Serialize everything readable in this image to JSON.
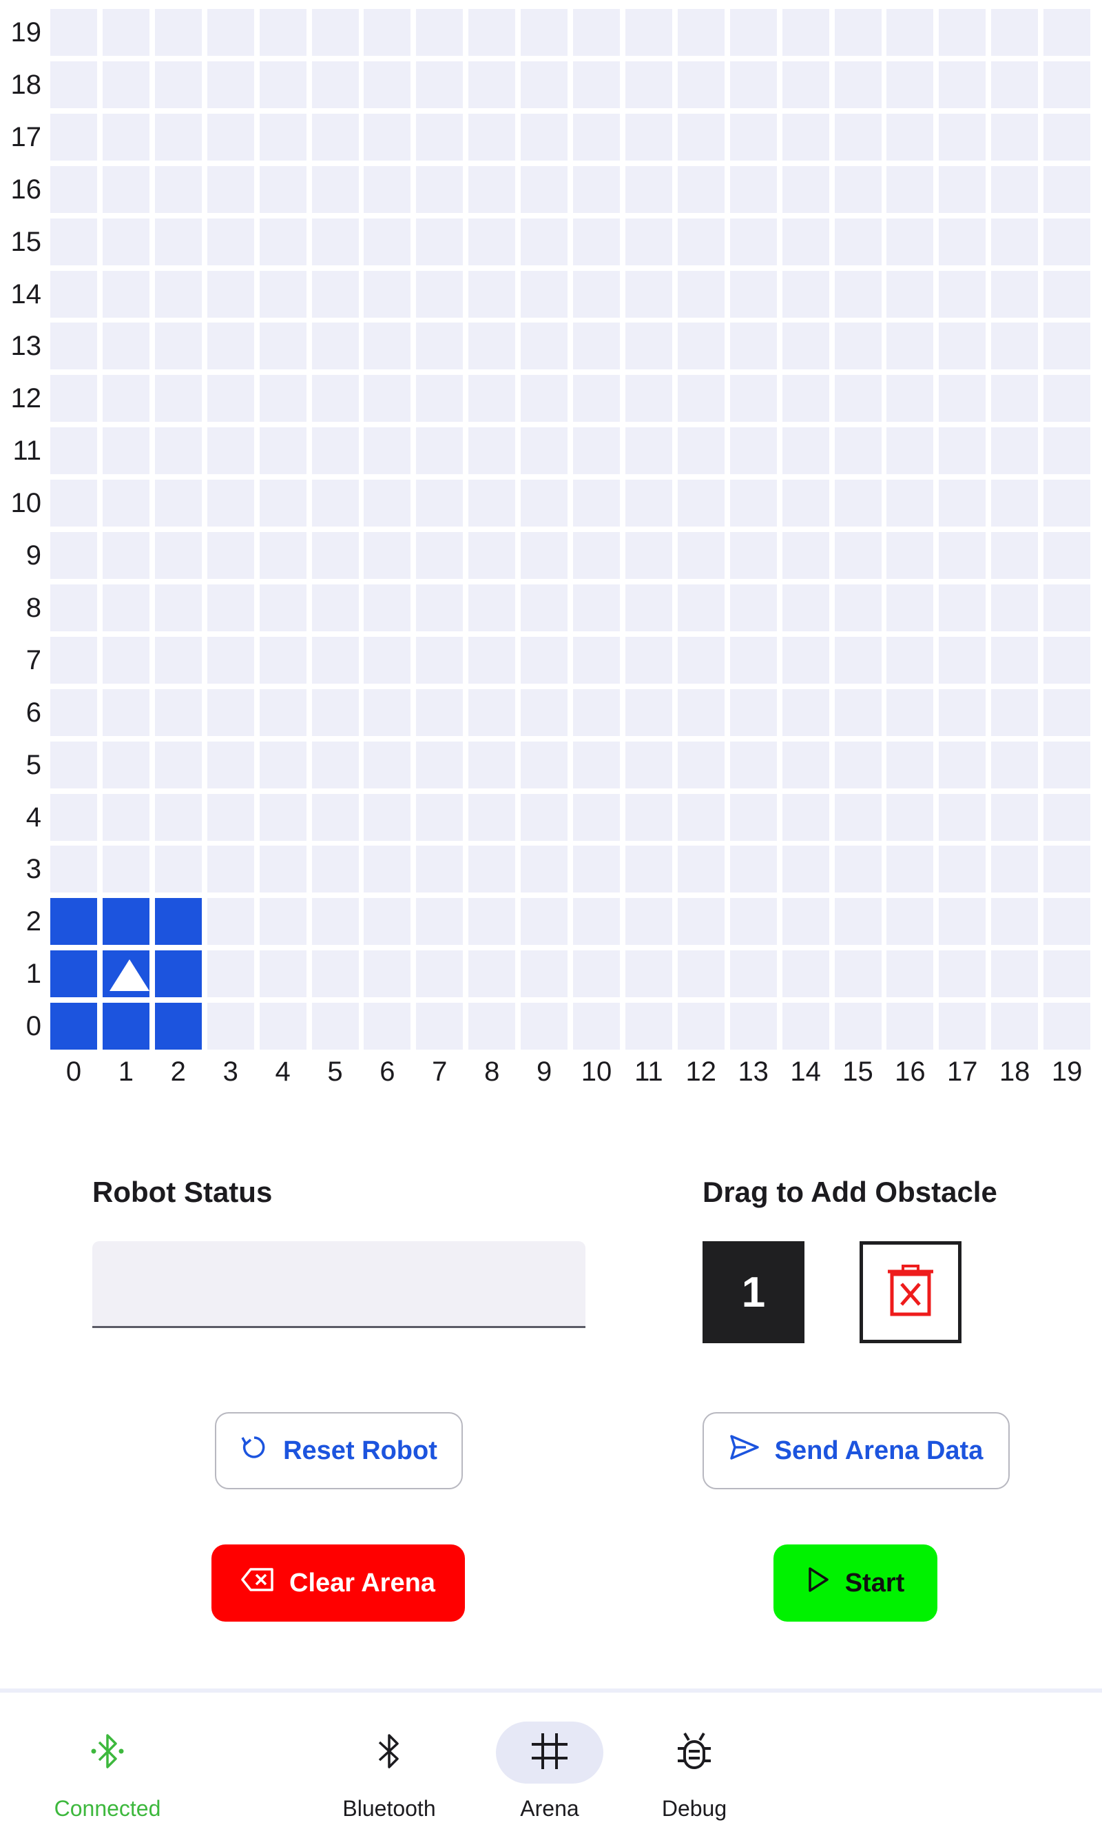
{
  "arena": {
    "y_labels": [
      "19",
      "18",
      "17",
      "16",
      "15",
      "14",
      "13",
      "12",
      "11",
      "10",
      "9",
      "8",
      "7",
      "6",
      "5",
      "4",
      "3",
      "2",
      "1",
      "0"
    ],
    "x_labels": [
      "0",
      "1",
      "2",
      "3",
      "4",
      "5",
      "6",
      "7",
      "8",
      "9",
      "10",
      "11",
      "12",
      "13",
      "14",
      "15",
      "16",
      "17",
      "18",
      "19"
    ],
    "robot": {
      "cells_x": [
        0,
        2
      ],
      "cells_y": [
        0,
        2
      ],
      "heading": "north"
    },
    "colors": {
      "cell": "#eeeff9",
      "robot": "#1c54de"
    }
  },
  "status": {
    "title": "Robot Status",
    "value": ""
  },
  "obstacle": {
    "title": "Drag to Add Obstacle",
    "tile_label": "1",
    "trash_icon": "trash-x-icon"
  },
  "buttons": {
    "reset": {
      "label": "Reset Robot",
      "icon": "refresh-icon"
    },
    "send": {
      "label": "Send Arena Data",
      "icon": "send-icon"
    },
    "clear": {
      "label": "Clear Arena",
      "icon": "backspace-icon"
    },
    "start": {
      "label": "Start",
      "icon": "play-icon"
    }
  },
  "nav": {
    "connected": {
      "label": "Connected",
      "icon": "bluetooth-connected-icon"
    },
    "bluetooth": {
      "label": "Bluetooth",
      "icon": "bluetooth-icon"
    },
    "arena": {
      "label": "Arena",
      "icon": "grid-icon"
    },
    "debug": {
      "label": "Debug",
      "icon": "bug-icon"
    }
  }
}
